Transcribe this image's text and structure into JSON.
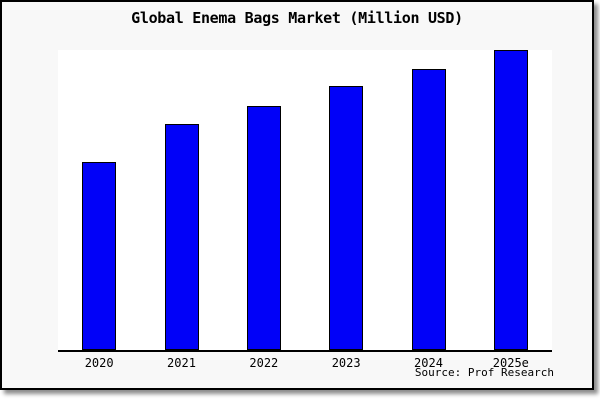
{
  "chart": {
    "title": "Global Enema Bags Market (Million USD)",
    "source": "Source: Prof Research"
  },
  "chart_data": {
    "type": "bar",
    "title": "Global Enema Bags Market (Million USD)",
    "categories": [
      "2020",
      "2021",
      "2022",
      "2023",
      "2024",
      "2025e"
    ],
    "values": [
      62.8,
      75.4,
      81.4,
      88.0,
      93.7,
      100.0
    ],
    "value_units": "relative % of 2025e bar (chart shows no y-axis tick labels)",
    "xlabel": "",
    "ylabel": "",
    "ylim": [
      0,
      100
    ],
    "grid": false,
    "legend": "none",
    "bar_color": "#0101f8",
    "bar_edge_color": "#000000"
  },
  "colors": {
    "canvas_background": "#f8f8f8",
    "plot_background": "#ffffff",
    "frame_border": "#000000",
    "axis_line": "#000000",
    "bar_fill": "#0101f8",
    "bar_edge": "#000000",
    "text": "#000000"
  }
}
